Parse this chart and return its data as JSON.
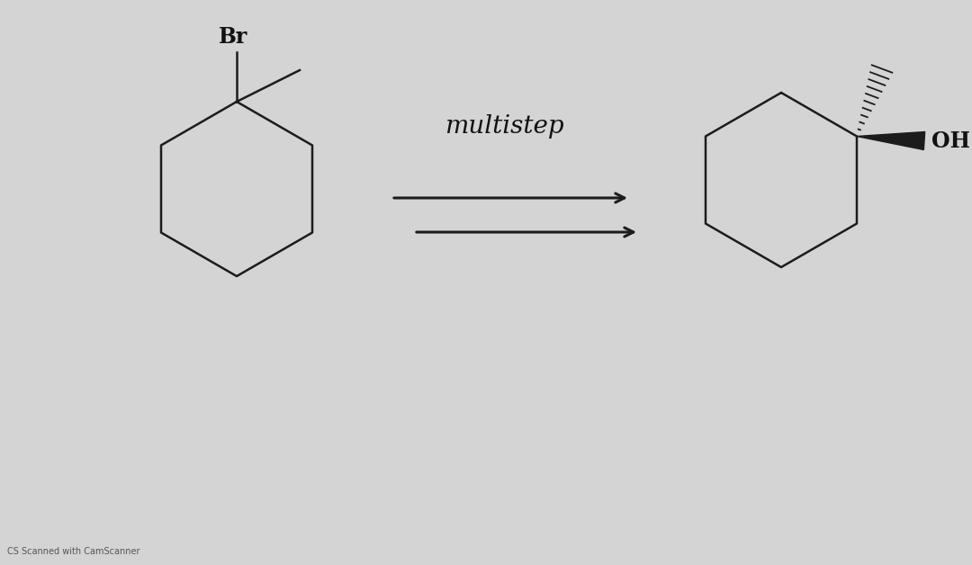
{
  "bg_color": "#d4d4d4",
  "line_color": "#1c1c1c",
  "text_color": "#111111",
  "title": "multistep",
  "title_fontsize": 20,
  "br_label": "Br",
  "oh_label": "OH",
  "label_fontsize": 17,
  "watermark": "CS Scanned with CamScanner",
  "watermark_fontsize": 7,
  "figw": 10.8,
  "figh": 6.28,
  "dpi": 100
}
